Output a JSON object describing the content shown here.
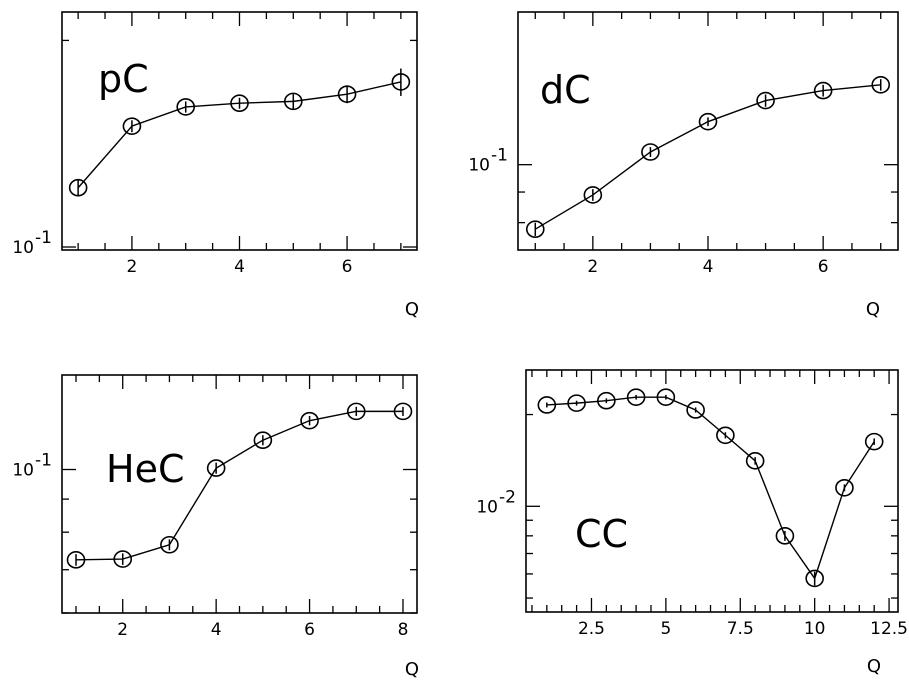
{
  "chart_data": [
    {
      "type": "line",
      "title": "pC",
      "xlabel": "Q",
      "ylabel": "",
      "y_scale": "log",
      "xlim": [
        0.7,
        7.3
      ],
      "ylim": [
        0.099,
        0.22
      ],
      "x_ticks": [
        2,
        4,
        6
      ],
      "x_tick_labels": [
        "2",
        "4",
        "6"
      ],
      "y_tick_labels": [
        "10^-1"
      ],
      "grid": false,
      "x": [
        1,
        2,
        3,
        4,
        5,
        6,
        7
      ],
      "series": [
        {
          "values": [
            0.122,
            0.15,
            0.16,
            0.162,
            0.163,
            0.167,
            0.174
          ],
          "errors": [
            0.003,
            0.003,
            0.003,
            0.003,
            0.004,
            0.005,
            0.008
          ]
        }
      ]
    },
    {
      "type": "line",
      "title": "dC",
      "xlabel": "Q",
      "ylabel": "",
      "y_scale": "log",
      "xlim": [
        0.7,
        7.3
      ],
      "ylim": [
        0.072,
        0.18
      ],
      "x_ticks": [
        2,
        4,
        6
      ],
      "x_tick_labels": [
        "2",
        "4",
        "6"
      ],
      "y_tick_labels": [
        "10^-1"
      ],
      "grid": false,
      "x": [
        1,
        2,
        3,
        4,
        5,
        6,
        7
      ],
      "series": [
        {
          "values": [
            0.078,
            0.089,
            0.105,
            0.118,
            0.128,
            0.133,
            0.136
          ],
          "errors": [
            0.002,
            0.002,
            0.002,
            0.002,
            0.003,
            0.003,
            0.003
          ]
        }
      ]
    },
    {
      "type": "line",
      "title": "HeC",
      "xlabel": "Q",
      "ylabel": "",
      "y_scale": "log",
      "xlim": [
        0.7,
        8.3
      ],
      "ylim": [
        0.06,
        0.14
      ],
      "x_ticks": [
        2,
        4,
        6,
        8
      ],
      "x_tick_labels": [
        "2",
        "4",
        "6",
        "8"
      ],
      "y_tick_labels": [
        "10^-1"
      ],
      "grid": false,
      "x": [
        1,
        2,
        3,
        4,
        5,
        6,
        7,
        8
      ],
      "series": [
        {
          "values": [
            0.0725,
            0.0727,
            0.0765,
            0.1005,
            0.111,
            0.119,
            0.123,
            0.123
          ],
          "errors": [
            0.0015,
            0.0015,
            0.0015,
            0.002,
            0.002,
            0.002,
            0.002,
            0.002
          ]
        }
      ]
    },
    {
      "type": "line",
      "title": "CC",
      "xlabel": "Q",
      "ylabel": "",
      "y_scale": "log",
      "xlim": [
        0.3,
        12.8
      ],
      "ylim": [
        0.0045,
        0.028
      ],
      "x_ticks": [
        2.5,
        5,
        7.5,
        10,
        12.5
      ],
      "x_tick_labels": [
        "2.5",
        "5",
        "7.5",
        "10",
        "12.5"
      ],
      "y_tick_labels": [
        "10^-2"
      ],
      "grid": false,
      "x": [
        1,
        2,
        3,
        4,
        5,
        6,
        7,
        8,
        9,
        10,
        11,
        12
      ],
      "series": [
        {
          "values": [
            0.0215,
            0.0218,
            0.0222,
            0.0228,
            0.0228,
            0.0207,
            0.0171,
            0.0141,
            0.008,
            0.0058,
            0.0115,
            0.0163
          ],
          "errors": [
            0.0004,
            0.0004,
            0.0004,
            0.0004,
            0.0004,
            0.0004,
            0.0004,
            0.0004,
            0.0003,
            0.0003,
            0.0003,
            0.0004
          ]
        }
      ]
    }
  ]
}
